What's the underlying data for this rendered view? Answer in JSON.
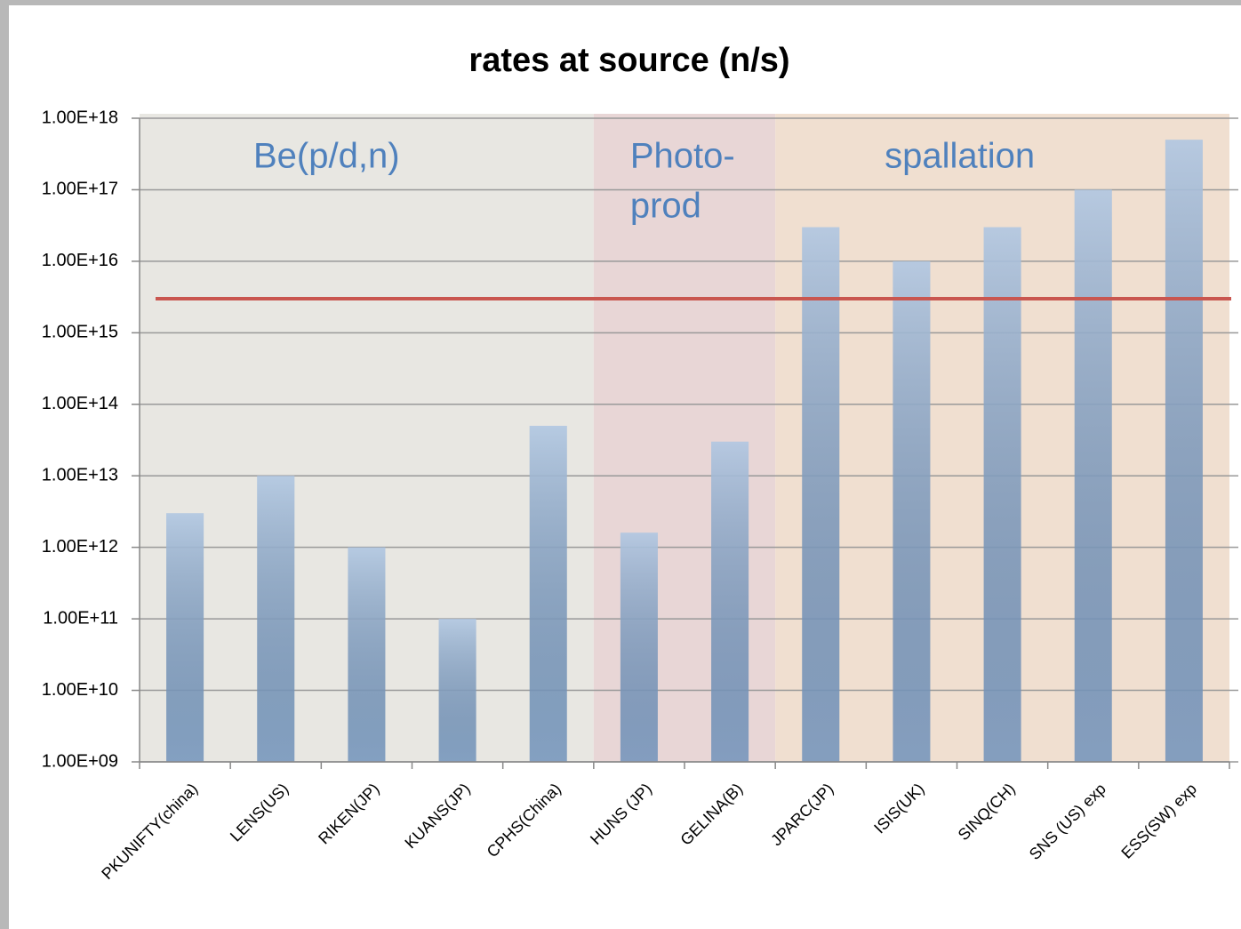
{
  "chart_data": {
    "type": "bar",
    "title": "rates at source (n/s)",
    "categories": [
      "PKUNIFTY(china)",
      "LENS(US)",
      "RIKEN(JP)",
      "KUANS(JP)",
      "CPHS(China)",
      "HUNS (JP)",
      "GELINA(B)",
      "JPARC(JP)",
      "ISIS(UK)",
      "SINQ(CH)",
      "SNS (US) exp",
      "ESS(SW) exp"
    ],
    "values": [
      3000000000000.0,
      10000000000000.0,
      1000000000000.0,
      100000000000.0,
      50000000000000.0,
      1600000000000.0,
      30000000000000.0,
      3e+16,
      1e+16,
      3e+16,
      1e+17,
      5e+17
    ],
    "color": "#7fa3cf",
    "log_scale": true,
    "grid": true,
    "ylim": [
      1000000000.0,
      1e+18
    ],
    "yticks": [
      {
        "value": 1000000000.0,
        "label": "1.00E+09"
      },
      {
        "value": 10000000000.0,
        "label": "1.00E+10"
      },
      {
        "value": 100000000000.0,
        "label": "1.00E+11"
      },
      {
        "value": 1000000000000.0,
        "label": "1.00E+12"
      },
      {
        "value": 10000000000000.0,
        "label": "1.00E+13"
      },
      {
        "value": 100000000000000.0,
        "label": "1.00E+14"
      },
      {
        "value": 1000000000000000.0,
        "label": "1.00E+15"
      },
      {
        "value": 1e+16,
        "label": "1.00E+16"
      },
      {
        "value": 1e+17,
        "label": "1.00E+17"
      },
      {
        "value": 1e+18,
        "label": "1.00E+18"
      }
    ],
    "reference_line": {
      "value": 3000000000000000.0,
      "color": "#c9564f"
    },
    "regions": [
      {
        "label": [
          "Be(p/d,n)"
        ],
        "span": [
          0,
          4
        ],
        "color": "#e6e4df"
      },
      {
        "label": [
          "Photo-",
          "prod"
        ],
        "span": [
          5,
          6
        ],
        "color": "#e6d2d2"
      },
      {
        "label": [
          "spallation"
        ],
        "span": [
          7,
          11
        ],
        "color": "#eedccb"
      }
    ]
  }
}
